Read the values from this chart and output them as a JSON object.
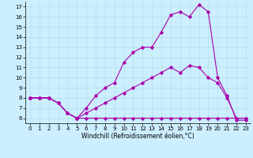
{
  "xlabel": "Windchill (Refroidissement éolien,°C)",
  "background_color": "#cceeff",
  "line_color": "#aa00aa",
  "xlim": [
    -0.5,
    23.5
  ],
  "ylim": [
    5.5,
    17.5
  ],
  "xticks": [
    0,
    1,
    2,
    3,
    4,
    5,
    6,
    7,
    8,
    9,
    10,
    11,
    12,
    13,
    14,
    15,
    16,
    17,
    18,
    19,
    20,
    21,
    22,
    23
  ],
  "yticks": [
    6,
    7,
    8,
    9,
    10,
    11,
    12,
    13,
    14,
    15,
    16,
    17
  ],
  "line1_x": [
    0,
    1,
    2,
    3,
    4,
    5,
    6,
    7,
    8,
    9,
    10,
    11,
    12,
    13,
    14,
    15,
    16,
    17,
    18,
    19,
    20,
    21,
    22,
    23
  ],
  "line1_y": [
    8,
    8,
    8,
    7.5,
    6.5,
    6,
    6.5,
    7,
    7.5,
    8,
    8.5,
    9,
    9.5,
    10,
    10.5,
    11,
    10.5,
    11.2,
    11,
    10,
    9.5,
    8,
    6,
    6
  ],
  "line2_x": [
    0,
    1,
    2,
    3,
    4,
    5,
    6,
    7,
    8,
    9,
    10,
    11,
    12,
    13,
    14,
    15,
    16,
    17,
    18,
    19,
    20,
    21,
    22,
    23
  ],
  "line2_y": [
    8,
    8,
    8,
    7.5,
    6.5,
    6,
    6,
    6,
    6,
    6,
    6,
    6,
    6,
    6,
    6,
    6,
    6,
    6,
    6,
    6,
    6,
    6,
    6,
    6
  ],
  "line3_x": [
    0,
    1,
    2,
    3,
    4,
    5,
    6,
    7,
    8,
    9,
    10,
    11,
    12,
    13,
    14,
    15,
    16,
    17,
    18,
    19,
    20,
    21,
    22,
    23
  ],
  "line3_y": [
    8,
    8,
    8,
    7.5,
    6.5,
    6,
    7,
    8.2,
    9,
    9.5,
    11.5,
    12.5,
    13,
    13,
    14.5,
    16.2,
    16.5,
    16,
    17.2,
    16.5,
    10,
    8.2,
    5.8,
    5.8
  ],
  "tick_fontsize": 5.0,
  "xlabel_fontsize": 5.5,
  "marker": "D",
  "markersize": 1.8,
  "linewidth": 0.8,
  "grid_color": "#aadddd",
  "grid_lw": 0.4
}
